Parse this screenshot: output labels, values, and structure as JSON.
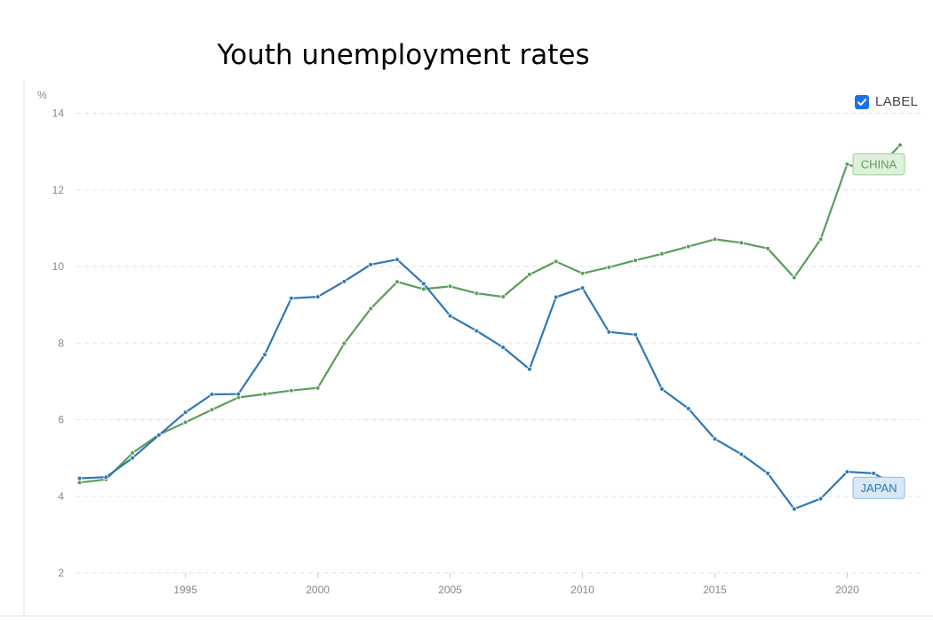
{
  "chart_data": {
    "type": "line",
    "title": "Youth unemployment rates",
    "ylabel": "%",
    "xlabel": "",
    "ylim": [
      2,
      14
    ],
    "xlim": [
      1991,
      2022
    ],
    "yticks": [
      2,
      4,
      6,
      8,
      10,
      12,
      14
    ],
    "xticks": [
      1995,
      2000,
      2005,
      2010,
      2015,
      2020
    ],
    "grid": true,
    "x": [
      1991,
      1992,
      1993,
      1994,
      1995,
      1996,
      1997,
      1998,
      1999,
      2000,
      2001,
      2002,
      2003,
      2004,
      2005,
      2006,
      2007,
      2008,
      2009,
      2010,
      2011,
      2012,
      2013,
      2014,
      2015,
      2016,
      2017,
      2018,
      2019,
      2020,
      2021,
      2022
    ],
    "series": [
      {
        "name": "CHINA",
        "color": "#5a9e5a",
        "label_bg": "#dff0dd",
        "label_border": "#9ccc95",
        "values": [
          4.36,
          4.44,
          5.13,
          5.61,
          5.93,
          6.26,
          6.58,
          6.67,
          6.76,
          6.83,
          7.99,
          8.9,
          9.6,
          9.41,
          9.48,
          9.3,
          9.21,
          9.79,
          10.13,
          9.82,
          9.98,
          10.16,
          10.33,
          10.52,
          10.71,
          10.62,
          10.47,
          9.71,
          10.71,
          12.67,
          12.45,
          13.17
        ]
      },
      {
        "name": "JAPAN",
        "color": "#2f78b4",
        "label_bg": "#d8e8f6",
        "label_border": "#8db8dd",
        "values": [
          4.47,
          4.5,
          5.0,
          5.6,
          6.19,
          6.66,
          6.67,
          7.7,
          9.17,
          9.21,
          9.61,
          10.05,
          10.18,
          9.55,
          8.71,
          8.32,
          7.89,
          7.32,
          9.2,
          9.44,
          8.29,
          8.22,
          6.8,
          6.29,
          5.5,
          5.1,
          4.6,
          3.67,
          3.94,
          4.64,
          4.6,
          4.22
        ]
      }
    ],
    "legend": {
      "label": "LABEL",
      "checked": true,
      "placement": "top-right"
    }
  }
}
